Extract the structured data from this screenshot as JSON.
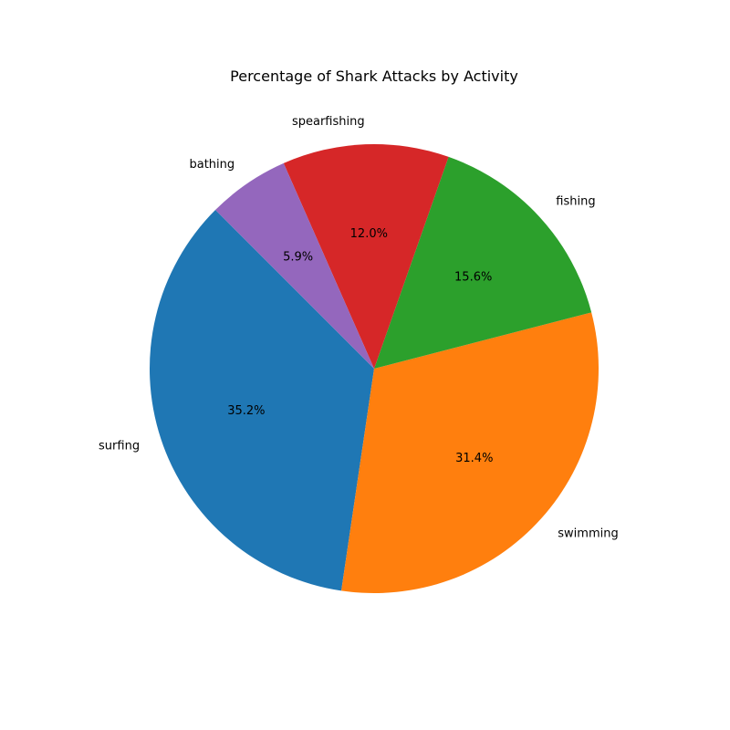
{
  "chart_data": {
    "type": "pie",
    "title": "Percentage of Shark Attacks by Activity",
    "start_angle_deg": 135,
    "direction": "counterclockwise",
    "slices": [
      {
        "label": "surfing",
        "value": 35.2,
        "pct_label": "35.2%",
        "color": "#1f77b4"
      },
      {
        "label": "swimming",
        "value": 31.4,
        "pct_label": "31.4%",
        "color": "#ff7f0e"
      },
      {
        "label": "fishing",
        "value": 15.6,
        "pct_label": "15.6%",
        "color": "#2ca02c"
      },
      {
        "label": "spearfishing",
        "value": 12.0,
        "pct_label": "12.0%",
        "color": "#d62728"
      },
      {
        "label": "bathing",
        "value": 5.9,
        "pct_label": "5.9%",
        "color": "#9467bd"
      }
    ]
  }
}
